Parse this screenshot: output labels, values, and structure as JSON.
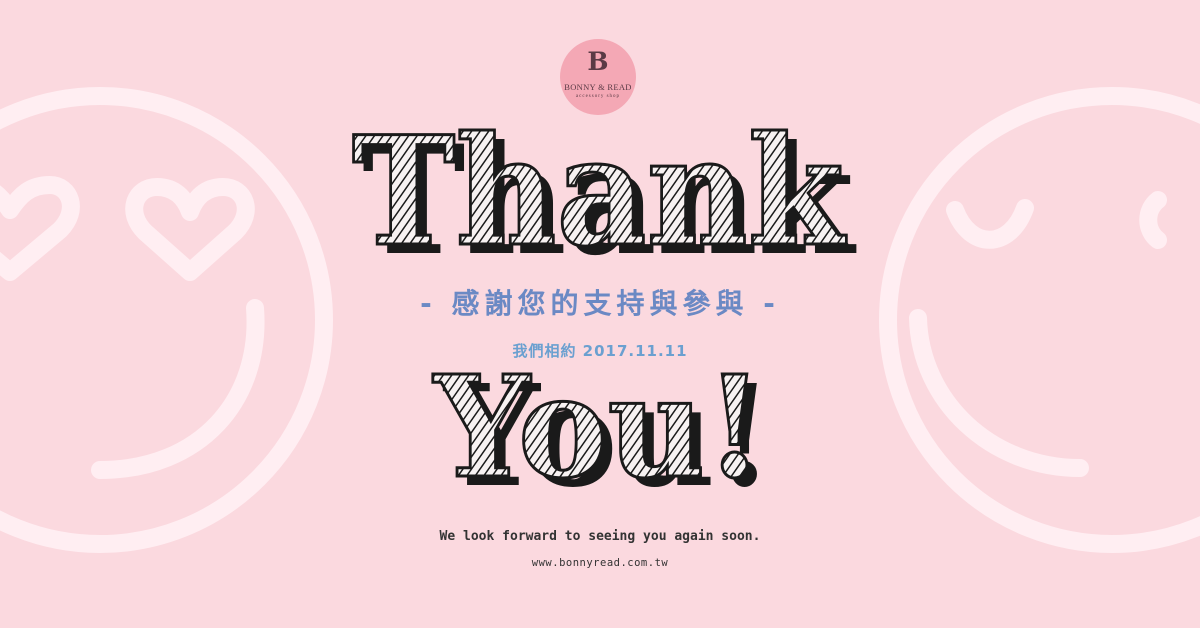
{
  "brand": {
    "logo_mark": "B",
    "logo_name": "BONNY & READ",
    "logo_sub": "accessory shop",
    "colors": {
      "background": "#fbd9df",
      "logo_circle": "#f4a8b5",
      "face_line": "#ffeef2",
      "tagline": "#6b89c4",
      "date": "#6ba0d0",
      "ink": "#1a1a1a"
    }
  },
  "headline": {
    "line1": "Thank",
    "line2": "You!"
  },
  "tagline_cn": "- 感謝您的支持與參與 -",
  "date_line": "我們相約 2017.11.11",
  "closing": "We look forward to seeing you again soon.",
  "website": "www.bonnyread.com.tw",
  "decor": {
    "left_face": "heart-eyes-smiley-icon",
    "right_face": "winking-smiley-icon"
  }
}
